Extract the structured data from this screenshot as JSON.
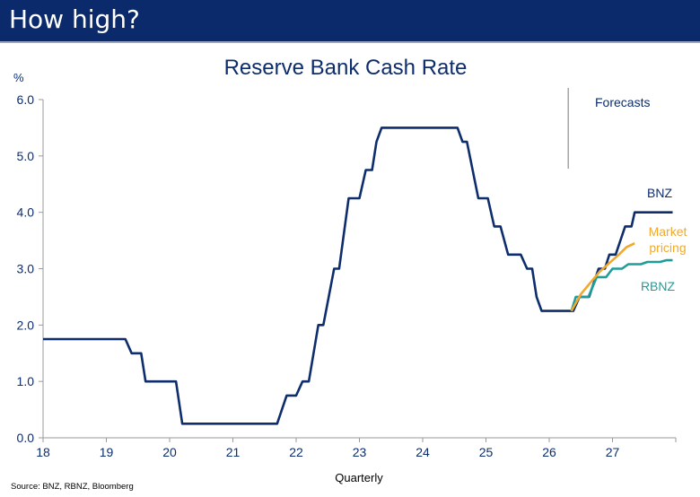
{
  "slide": {
    "title": "How high?",
    "source": "Source: BNZ, RBNZ, Bloomberg"
  },
  "colors": {
    "header_bg": "#0b2a6b",
    "bnz": "#0d2d6c",
    "market": "#f0a92c",
    "rbnz": "#1e9e9a",
    "text": "#0d2d6c"
  },
  "chart_data": {
    "type": "line",
    "title": "Reserve Bank Cash Rate",
    "ylabel": "%",
    "xlabel": "Quarterly",
    "ylim": [
      0,
      6
    ],
    "xlim": [
      18,
      28
    ],
    "yticks": [
      "0.0",
      "1.0",
      "2.0",
      "3.0",
      "4.0",
      "5.0",
      "6.0"
    ],
    "xticks": [
      "18",
      "19",
      "20",
      "21",
      "22",
      "23",
      "24",
      "25",
      "26",
      "27"
    ],
    "forecast_start": 26.3,
    "forecast_label": "Forecasts",
    "series": [
      {
        "name": "BNZ",
        "color": "#0d2d6c",
        "points": [
          [
            18.0,
            1.75
          ],
          [
            19.3,
            1.75
          ],
          [
            19.4,
            1.5
          ],
          [
            19.55,
            1.5
          ],
          [
            19.62,
            1.0
          ],
          [
            20.1,
            1.0
          ],
          [
            20.2,
            0.25
          ],
          [
            21.7,
            0.25
          ],
          [
            21.85,
            0.75
          ],
          [
            22.0,
            0.75
          ],
          [
            22.1,
            1.0
          ],
          [
            22.2,
            1.0
          ],
          [
            22.35,
            2.0
          ],
          [
            22.43,
            2.0
          ],
          [
            22.6,
            3.0
          ],
          [
            22.68,
            3.0
          ],
          [
            22.83,
            4.25
          ],
          [
            23.0,
            4.25
          ],
          [
            23.1,
            4.75
          ],
          [
            23.2,
            4.75
          ],
          [
            23.27,
            5.25
          ],
          [
            23.35,
            5.5
          ],
          [
            24.55,
            5.5
          ],
          [
            24.63,
            5.25
          ],
          [
            24.7,
            5.25
          ],
          [
            24.88,
            4.25
          ],
          [
            25.03,
            4.25
          ],
          [
            25.13,
            3.75
          ],
          [
            25.23,
            3.75
          ],
          [
            25.35,
            3.25
          ],
          [
            25.55,
            3.25
          ],
          [
            25.65,
            3.0
          ],
          [
            25.73,
            3.0
          ],
          [
            25.8,
            2.5
          ],
          [
            25.88,
            2.25
          ],
          [
            26.38,
            2.25
          ],
          [
            26.48,
            2.5
          ],
          [
            26.63,
            2.5
          ],
          [
            26.78,
            3.0
          ],
          [
            26.88,
            3.0
          ],
          [
            26.95,
            3.25
          ],
          [
            27.05,
            3.25
          ],
          [
            27.2,
            3.75
          ],
          [
            27.3,
            3.75
          ],
          [
            27.35,
            4.0
          ],
          [
            27.95,
            4.0
          ]
        ]
      },
      {
        "name": "Market pricing",
        "label_lines": [
          "Market",
          "pricing"
        ],
        "color": "#f0a92c",
        "points": [
          [
            26.35,
            2.25
          ],
          [
            26.5,
            2.55
          ],
          [
            26.65,
            2.75
          ],
          [
            26.8,
            2.95
          ],
          [
            26.95,
            3.1
          ],
          [
            27.1,
            3.25
          ],
          [
            27.22,
            3.38
          ],
          [
            27.35,
            3.45
          ]
        ]
      },
      {
        "name": "RBNZ",
        "color": "#1e9e9a",
        "points": [
          [
            26.35,
            2.25
          ],
          [
            26.42,
            2.5
          ],
          [
            26.62,
            2.5
          ],
          [
            26.75,
            2.85
          ],
          [
            26.9,
            2.85
          ],
          [
            27.0,
            3.0
          ],
          [
            27.15,
            3.0
          ],
          [
            27.25,
            3.08
          ],
          [
            27.45,
            3.08
          ],
          [
            27.55,
            3.12
          ],
          [
            27.75,
            3.12
          ],
          [
            27.85,
            3.15
          ],
          [
            27.95,
            3.15
          ]
        ]
      }
    ],
    "grid": false,
    "legend": "inline labels at right"
  }
}
